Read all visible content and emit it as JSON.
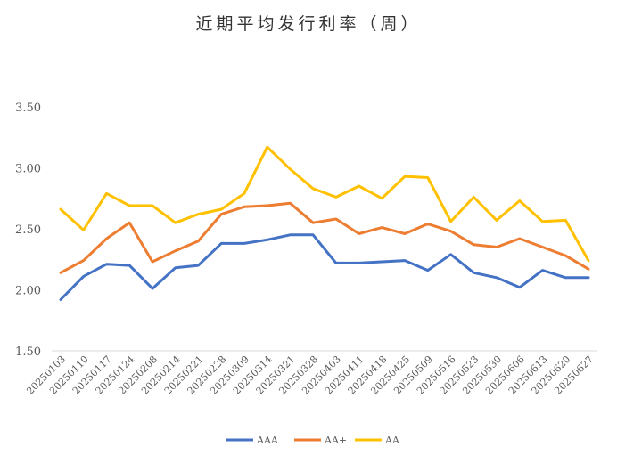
{
  "chart_data": {
    "type": "line",
    "title": "近期平均发行利率（周）",
    "xlabel": "",
    "ylabel": "",
    "ylim": [
      1.5,
      3.5
    ],
    "y_ticks": [
      "3.50",
      "3.00",
      "2.50",
      "2.00",
      "1.50"
    ],
    "grid": false,
    "legend_position": "bottom",
    "x": [
      "20250103",
      "20250110",
      "20250117",
      "20250124",
      "20250208",
      "20250214",
      "20250221",
      "20250228",
      "20250309",
      "20250314",
      "20250321",
      "20250328",
      "20250403",
      "20250411",
      "20250418",
      "20250425",
      "20250509",
      "20250516",
      "20250523",
      "20250530",
      "20250606",
      "20250613",
      "20250620",
      "20250627"
    ],
    "series": [
      {
        "name": "AAA",
        "color": "#4472C4",
        "values": [
          1.92,
          2.11,
          2.21,
          2.2,
          2.01,
          2.18,
          2.2,
          2.38,
          2.38,
          2.41,
          2.45,
          2.45,
          2.22,
          2.22,
          2.23,
          2.24,
          2.16,
          2.29,
          2.14,
          2.1,
          2.02,
          2.16,
          2.1,
          2.1
        ]
      },
      {
        "name": "AA+",
        "color": "#ED7D31",
        "values": [
          2.14,
          2.24,
          2.42,
          2.55,
          2.23,
          2.32,
          2.4,
          2.62,
          2.68,
          2.69,
          2.71,
          2.55,
          2.58,
          2.46,
          2.51,
          2.46,
          2.54,
          2.48,
          2.37,
          2.35,
          2.42,
          2.35,
          2.28,
          2.17
        ]
      },
      {
        "name": "AA",
        "color": "#FFC000",
        "values": [
          2.66,
          2.49,
          2.79,
          2.69,
          2.69,
          2.55,
          2.62,
          2.66,
          2.79,
          3.17,
          2.99,
          2.83,
          2.76,
          2.85,
          2.75,
          2.93,
          2.92,
          2.56,
          2.76,
          2.57,
          2.73,
          2.56,
          2.57,
          2.24
        ]
      }
    ]
  }
}
